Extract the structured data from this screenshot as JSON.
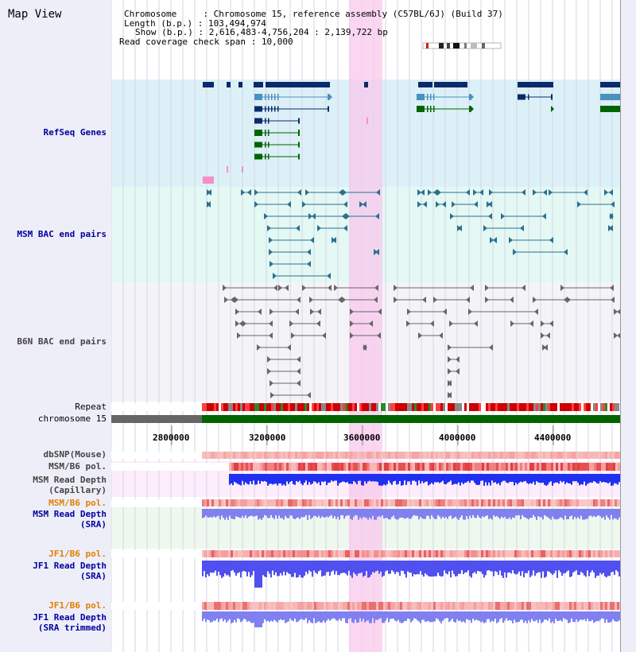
{
  "header": {
    "title": "Map View",
    "info": {
      "chromosome_key": "Chromosome",
      "chromosome_val": "Chromosome 15, reference assembly (C57BL/6J) (Build 37)",
      "length_key": "Length (b.p.)",
      "length_val": "103,494,974",
      "show_key": "Show (b.p.)",
      "show_val": "2,616,483-4,756,204 : 2,139,722 bp",
      "coverage_key": "Read coverage check span",
      "coverage_val": "10,000"
    }
  },
  "tracks": {
    "refseq": "RefSeq Genes",
    "msm_bac": "MSM BAC end pairs",
    "b6n_bac": "B6N BAC end pairs",
    "repeat": "Repeat",
    "chromosome": "chromosome 15",
    "dbsnp": "dbSNP(Mouse)",
    "msm_b6_pol_1": "MSM/B6 pol.",
    "msm_depth_cap_1": "MSM Read Depth",
    "msm_depth_cap_2": "(Capillary)",
    "msm_b6_pol_2": "MSM/B6 pol.",
    "msm_depth_sra_1": "MSM Read Depth",
    "msm_depth_sra_2": "(SRA)",
    "jf1_b6_pol_1": "JF1/B6 pol.",
    "jf1_depth_sra_1": "JF1 Read Depth",
    "jf1_depth_sra_2": "(SRA)",
    "jf1_b6_pol_2": "JF1/B6 pol.",
    "jf1_depth_trim_1": "JF1 Read Depth",
    "jf1_depth_trim_2": "(SRA trimmed)"
  },
  "ruler": {
    "ticks": [
      "2800000",
      "3200000",
      "3600000",
      "4000000",
      "4400000"
    ]
  },
  "colors": {
    "highlight": "#f8c8ec",
    "gene_dark": "#0a2a6a",
    "gene_mid": "#4a90c0",
    "gene_green": "#006400",
    "bac_msm": "#2a7090",
    "bac_b6n": "#555555",
    "depth_blue": "#2030f0",
    "depth_light": "#8080f0"
  }
}
